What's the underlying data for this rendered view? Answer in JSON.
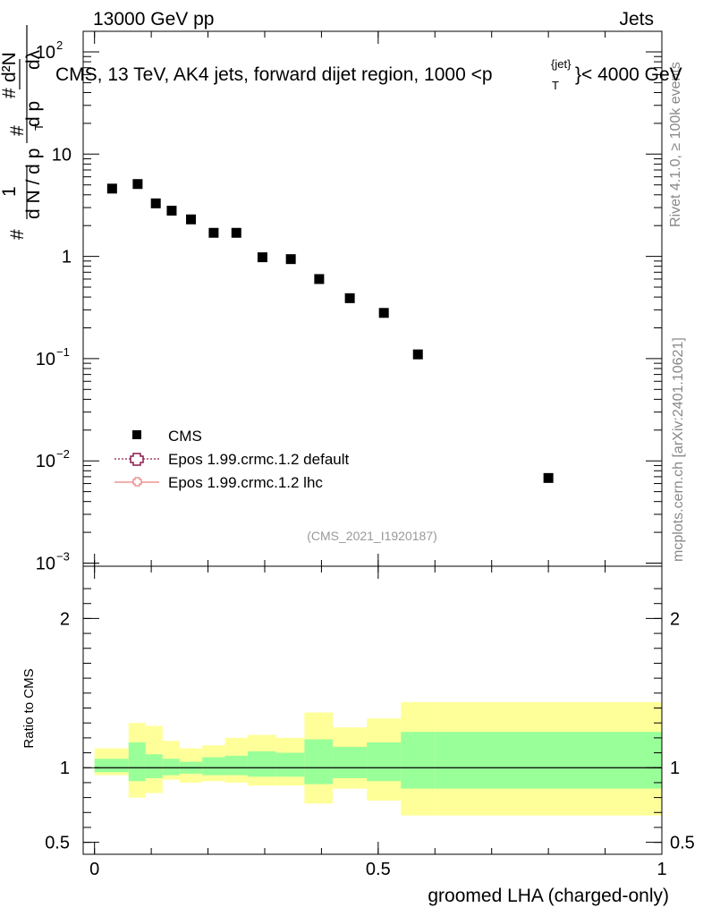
{
  "header": {
    "left": "13000 GeV pp",
    "right": "Jets"
  },
  "side_labels": {
    "rivet": "Rivet 4.1.0, ≥ 100k events",
    "mcplots": "mcplots.cern.ch [arXiv:2401.10621]"
  },
  "chart_data": [
    {
      "type": "scatter",
      "panel": "main",
      "title": "CMS, 13 TeV, AK4 jets, forward dijet region, 1000 < p_T^{jet} < 4000 GeV",
      "title_parts": {
        "before": "CMS, 13 TeV, AK4 jets, forward dijet region, 1000 <p",
        "sup": "{jet}",
        "sub": "T",
        "after": "}< 4000 GeV"
      },
      "ylabel_parts": {
        "left": "1",
        "mid": "d N / d p",
        "sub": "T",
        "num": "d²N",
        "den": "d p",
        "den2": "dλ",
        "hash": "#"
      },
      "yscale": "log",
      "ylim": [
        0.001,
        150
      ],
      "xlim": [
        -0.02,
        1.0
      ],
      "y_ticks": [
        {
          "value": 100,
          "label": "10",
          "sup": "2"
        },
        {
          "value": 10,
          "label": "10",
          "sup": ""
        },
        {
          "value": 1,
          "label": "1",
          "sup": ""
        },
        {
          "value": 0.1,
          "label": "10",
          "sup": "−1"
        },
        {
          "value": 0.01,
          "label": "10",
          "sup": "−2"
        },
        {
          "value": 0.001,
          "label": "10",
          "sup": "−3"
        }
      ],
      "series": [
        {
          "name": "CMS",
          "x": [
            0.031,
            0.076,
            0.108,
            0.136,
            0.17,
            0.21,
            0.25,
            0.296,
            0.346,
            0.396,
            0.45,
            0.51,
            0.57,
            0.8
          ],
          "y": [
            4.6,
            5.1,
            3.3,
            2.8,
            2.3,
            1.7,
            1.7,
            0.98,
            0.94,
            0.6,
            0.39,
            0.28,
            0.11,
            0.0068
          ]
        }
      ],
      "legend": [
        {
          "label": "CMS",
          "color": "#000000",
          "style": "marker"
        },
        {
          "label": "Epos 1.99.crmc.1.2 default",
          "color": "#8c1a4b",
          "style": "dotted-cross"
        },
        {
          "label": "Epos 1.99.crmc.1.2 lhc",
          "color": "#e8807a",
          "style": "solid-cross"
        }
      ],
      "annotation": "(CMS_2021_I1920187)"
    },
    {
      "type": "area",
      "panel": "ratio",
      "ylabel": "Ratio to CMS",
      "xlabel": "groomed LHA (charged-only)",
      "xlim": [
        -0.02,
        1.0
      ],
      "ylim": [
        0.42,
        2.35
      ],
      "x_ticks": [
        {
          "value": 0,
          "label": "0"
        },
        {
          "value": 0.5,
          "label": "0.5"
        },
        {
          "value": 1,
          "label": "1"
        }
      ],
      "y_ticks": [
        {
          "value": 0.5,
          "label": "0.5"
        },
        {
          "value": 1,
          "label": "1"
        },
        {
          "value": 2,
          "label": "2"
        }
      ],
      "bin_edges": [
        0.0,
        0.06,
        0.09,
        0.12,
        0.15,
        0.19,
        0.23,
        0.27,
        0.32,
        0.37,
        0.42,
        0.48,
        0.54,
        0.6,
        1.0
      ],
      "green_band": {
        "lo": [
          0.97,
          0.91,
          0.93,
          0.95,
          0.96,
          0.95,
          0.95,
          0.94,
          0.94,
          0.89,
          0.93,
          0.91,
          0.86,
          0.86
        ],
        "hi": [
          1.06,
          1.17,
          1.09,
          1.06,
          1.04,
          1.07,
          1.08,
          1.11,
          1.1,
          1.19,
          1.14,
          1.17,
          1.24,
          1.24
        ]
      },
      "yellow_band": {
        "lo": [
          0.95,
          0.8,
          0.83,
          0.92,
          0.9,
          0.91,
          0.9,
          0.88,
          0.88,
          0.76,
          0.86,
          0.78,
          0.68,
          0.68
        ],
        "hi": [
          1.13,
          1.3,
          1.28,
          1.18,
          1.13,
          1.15,
          1.2,
          1.22,
          1.2,
          1.37,
          1.27,
          1.33,
          1.44,
          1.44
        ]
      },
      "reference_line": 1.0,
      "colors": {
        "green": "#99ff99",
        "yellow": "#ffff99"
      }
    }
  ]
}
